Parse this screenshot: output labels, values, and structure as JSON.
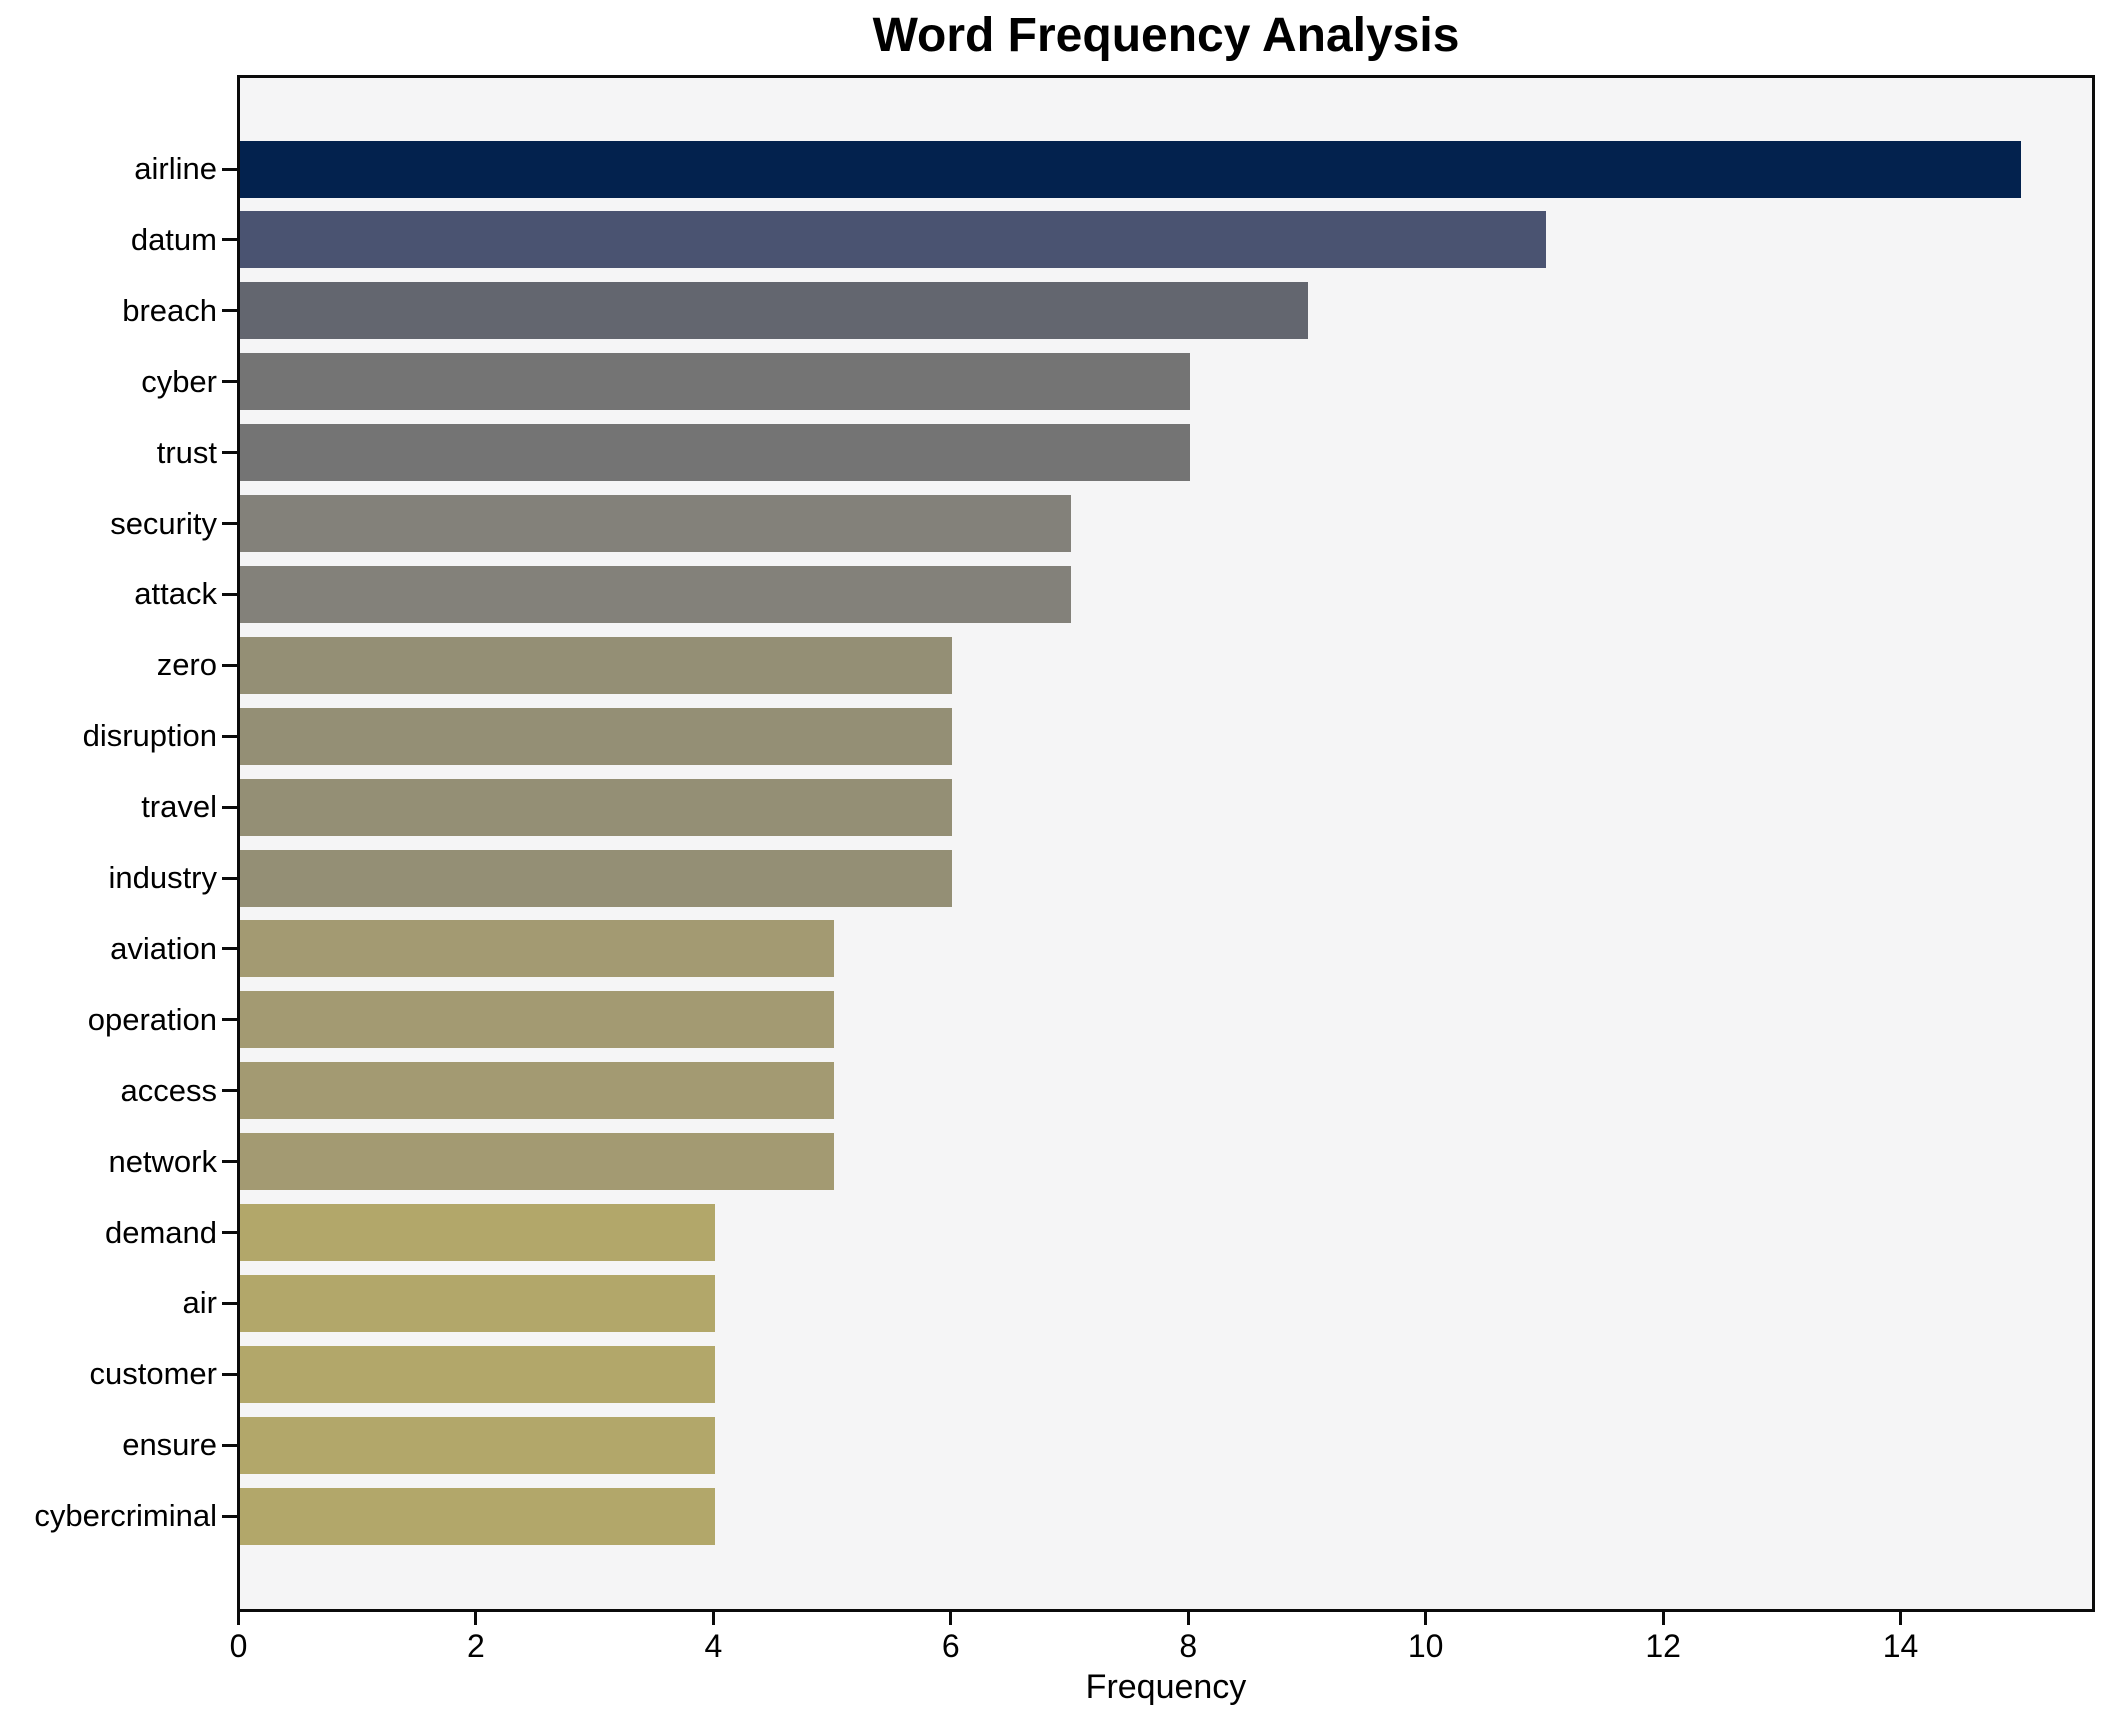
{
  "title": "Word Frequency Analysis",
  "chart_data": {
    "type": "bar",
    "orientation": "horizontal",
    "title": "Word Frequency Analysis",
    "xlabel": "Frequency",
    "ylabel": "",
    "categories": [
      "airline",
      "datum",
      "breach",
      "cyber",
      "trust",
      "security",
      "attack",
      "zero",
      "disruption",
      "travel",
      "industry",
      "aviation",
      "operation",
      "access",
      "network",
      "demand",
      "air",
      "customer",
      "ensure",
      "cybercriminal"
    ],
    "values": [
      15,
      11,
      9,
      8,
      8,
      7,
      7,
      6,
      6,
      6,
      6,
      5,
      5,
      5,
      5,
      4,
      4,
      4,
      4,
      4
    ],
    "bar_colors": [
      "#03224e",
      "#4a5371",
      "#63666f",
      "#747474",
      "#747474",
      "#83817a",
      "#83817a",
      "#948f75",
      "#948f75",
      "#948f75",
      "#948f75",
      "#a39a72",
      "#a39a72",
      "#a39a72",
      "#a39a72",
      "#b2a76a",
      "#b2a76a",
      "#b2a76a",
      "#b2a76a",
      "#b2a76a"
    ],
    "xticks": [
      0,
      2,
      4,
      6,
      8,
      10,
      12,
      14
    ],
    "xlim": [
      0,
      15.6
    ],
    "grid": false,
    "legend": null,
    "plot_background": "#f5f5f6",
    "figure_background": "#ffffff",
    "spine_color": "#0b0b0b",
    "text_color": "#000000"
  }
}
